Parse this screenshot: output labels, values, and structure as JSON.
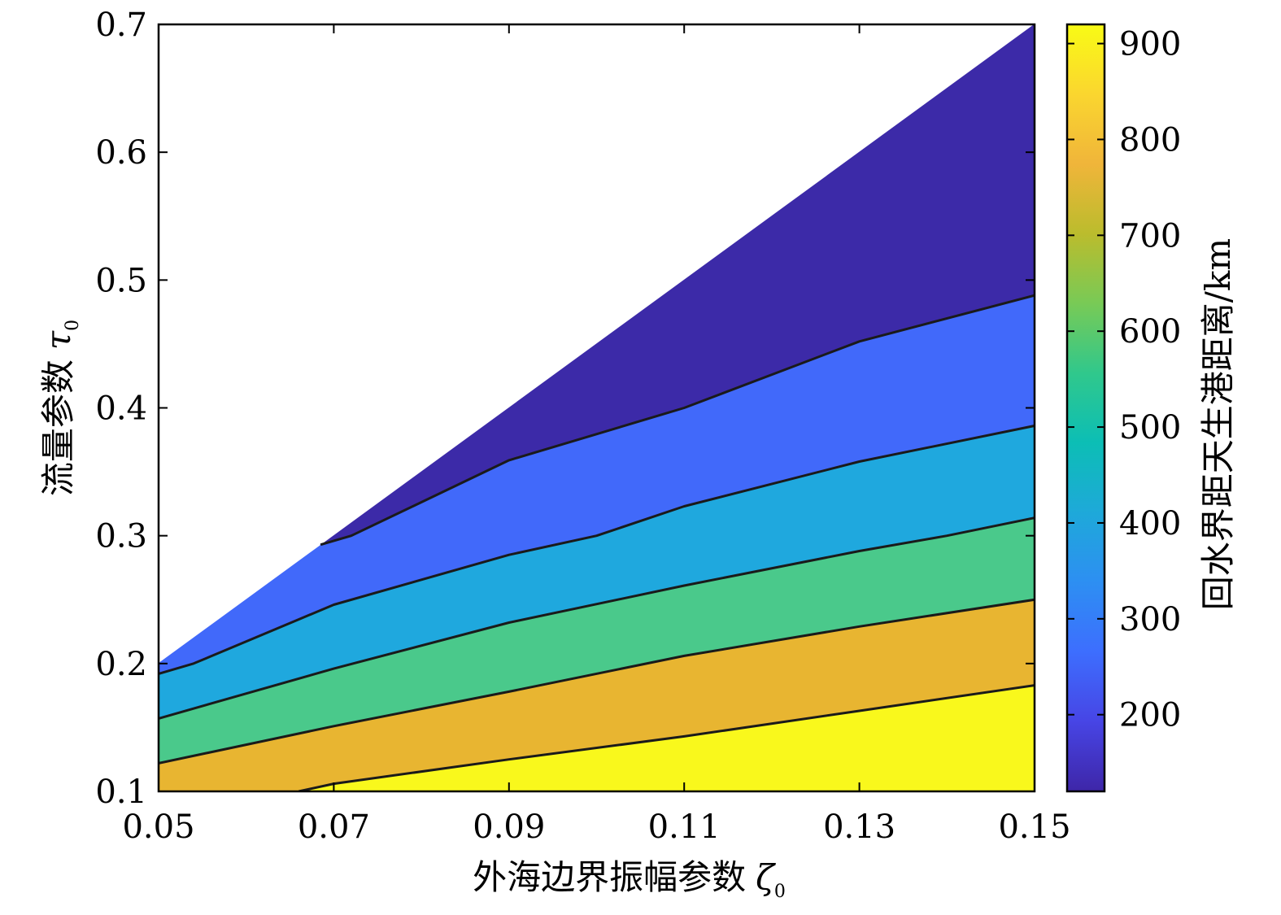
{
  "chart_data": {
    "type": "filled-contour",
    "xlabel": "外海边界振幅参数",
    "xlabel_symbol": "ζ",
    "xlabel_subscript": "0",
    "ylabel": "流量参数",
    "ylabel_symbol": "τ",
    "ylabel_subscript": "0",
    "colorbar_label": "回水界距天生港距离/km",
    "xlim": [
      0.05,
      0.15
    ],
    "ylim": [
      0.1,
      0.7
    ],
    "x_ticks": [
      "0.05",
      "0.07",
      "0.09",
      "0.11",
      "0.13",
      "0.15"
    ],
    "y_ticks": [
      "0.1",
      "0.2",
      "0.3",
      "0.4",
      "0.5",
      "0.6",
      "0.7"
    ],
    "colorbar_range": [
      120,
      920
    ],
    "colorbar_ticks": [
      "200",
      "300",
      "400",
      "500",
      "600",
      "700",
      "800",
      "900"
    ],
    "valid_region_upper_boundary": [
      [
        0.05,
        0.2
      ],
      [
        0.15,
        0.7
      ]
    ],
    "contour_levels": [
      {
        "points": [
          [
            0.0685,
            0.293
          ],
          [
            0.072,
            0.3
          ],
          [
            0.09,
            0.359
          ],
          [
            0.11,
            0.4
          ],
          [
            0.13,
            0.452
          ],
          [
            0.15,
            0.488
          ]
        ]
      },
      {
        "points": [
          [
            0.05,
            0.192
          ],
          [
            0.054,
            0.2
          ],
          [
            0.07,
            0.246
          ],
          [
            0.09,
            0.285
          ],
          [
            0.1,
            0.3
          ],
          [
            0.11,
            0.323
          ],
          [
            0.13,
            0.358
          ],
          [
            0.15,
            0.386
          ]
        ]
      },
      {
        "points": [
          [
            0.05,
            0.157
          ],
          [
            0.07,
            0.196
          ],
          [
            0.09,
            0.232
          ],
          [
            0.11,
            0.261
          ],
          [
            0.13,
            0.288
          ],
          [
            0.14,
            0.3
          ],
          [
            0.15,
            0.314
          ]
        ]
      },
      {
        "points": [
          [
            0.05,
            0.122
          ],
          [
            0.07,
            0.151
          ],
          [
            0.09,
            0.178
          ],
          [
            0.11,
            0.206
          ],
          [
            0.13,
            0.229
          ],
          [
            0.15,
            0.25
          ]
        ]
      },
      {
        "points": [
          [
            0.066,
            0.1
          ],
          [
            0.07,
            0.106
          ],
          [
            0.09,
            0.125
          ],
          [
            0.11,
            0.143
          ],
          [
            0.13,
            0.163
          ],
          [
            0.15,
            0.183
          ]
        ]
      }
    ],
    "bands": [
      {
        "color": "#3c2aa8"
      },
      {
        "color": "#4169fa"
      },
      {
        "color": "#1fa8de"
      },
      {
        "color": "#4ac98b"
      },
      {
        "color": "#e8b531"
      },
      {
        "color": "#f9f81c"
      }
    ],
    "colormap": [
      "#3e26a8",
      "#4745e5",
      "#3d6efe",
      "#2d8ff2",
      "#1ea9d9",
      "#0cbeb5",
      "#30c88c",
      "#78ca56",
      "#bbbc2d",
      "#f0b53a",
      "#fad62f",
      "#f9fb15"
    ]
  }
}
